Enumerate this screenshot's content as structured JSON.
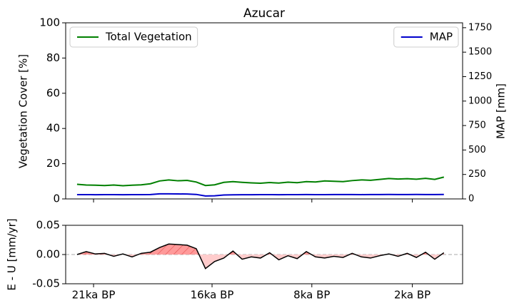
{
  "chart_data": [
    {
      "type": "line",
      "title": "Azucar",
      "y_label": "Vegetation Cover [%]",
      "y2_label": "MAP [mm]",
      "x": [
        0,
        2.5,
        5,
        7.5,
        10,
        12.5,
        15,
        17.5,
        20,
        22.5,
        25,
        27.5,
        30,
        32.5,
        35,
        37.5,
        40,
        42.5,
        45,
        47.5,
        50,
        52.5,
        55,
        57.5,
        60,
        62.5,
        65,
        67.5,
        70,
        72.5,
        75,
        77.5,
        80,
        82.5,
        85,
        87.5,
        90,
        92.5,
        95,
        97.5,
        100
      ],
      "xlim": [
        -3.1,
        105.1
      ],
      "ylim": [
        0,
        100
      ],
      "yticks": [
        0,
        20,
        40,
        60,
        80,
        100
      ],
      "y2lim": [
        0,
        1800
      ],
      "y2ticks": [
        0,
        250,
        500,
        750,
        1000,
        1250,
        1500,
        1750
      ],
      "series": [
        {
          "name": "Total Vegetation",
          "color": "#008000",
          "legend_loc": "upper left",
          "values": [
            8.3,
            7.9,
            7.8,
            7.6,
            7.9,
            7.5,
            7.8,
            8.0,
            8.6,
            10.2,
            10.8,
            10.3,
            10.5,
            9.6,
            7.6,
            8.0,
            9.4,
            9.8,
            9.4,
            9.1,
            8.9,
            9.3,
            9.0,
            9.5,
            9.2,
            9.8,
            9.6,
            10.2,
            10.0,
            9.8,
            10.4,
            10.8,
            10.6,
            11.1,
            11.6,
            11.3,
            11.5,
            11.2,
            11.7,
            11.1,
            12.4
          ]
        },
        {
          "name": "MAP",
          "color": "#0000cc",
          "axis": "y2",
          "legend_loc": "upper right",
          "values": [
            44,
            44,
            43,
            44,
            44,
            43,
            44,
            44,
            45,
            52,
            52,
            51,
            50,
            46,
            30,
            32,
            40,
            42,
            43,
            43,
            44,
            44,
            43,
            44,
            44,
            45,
            44,
            44,
            45,
            45,
            45,
            44,
            45,
            45,
            46,
            45,
            45,
            46,
            45,
            45,
            46
          ]
        }
      ]
    },
    {
      "type": "area",
      "y_label": "E - U [mm/yr]",
      "x": [
        0,
        2.5,
        5,
        7.5,
        10,
        12.5,
        15,
        17.5,
        20,
        22.5,
        25,
        27.5,
        30,
        32.5,
        35,
        37.5,
        40,
        42.5,
        45,
        47.5,
        50,
        52.5,
        55,
        57.5,
        60,
        62.5,
        65,
        67.5,
        70,
        72.5,
        75,
        77.5,
        80,
        82.5,
        85,
        87.5,
        90,
        92.5,
        95,
        97.5,
        100
      ],
      "xlim": [
        -3.1,
        105.1
      ],
      "xticks": [
        {
          "value": 4.5,
          "label": "21ka BP"
        },
        {
          "value": 36.8,
          "label": "16ka BP"
        },
        {
          "value": 64,
          "label": "8ka BP"
        },
        {
          "value": 91.4,
          "label": "2ka BP"
        }
      ],
      "ylim": [
        -0.05,
        0.05
      ],
      "yticks": [
        -0.05,
        {
          "value": 0,
          "label": "0.00"
        },
        0.05
      ],
      "zero_line_color": "#aaaaaa",
      "series": [
        {
          "color": "#000000",
          "positive_color": "#ff9a9a",
          "negative_color": "#ffcccc",
          "values": [
            0,
            0.005,
            0.001,
            0.002,
            -0.003,
            0.001,
            -0.004,
            0.002,
            0.004,
            0.012,
            0.018,
            0.017,
            0.016,
            0.01,
            -0.024,
            -0.012,
            -0.006,
            0.006,
            -0.008,
            -0.004,
            -0.006,
            0.003,
            -0.009,
            -0.002,
            -0.007,
            0.005,
            -0.004,
            -0.006,
            -0.003,
            -0.005,
            0.002,
            -0.004,
            -0.006,
            -0.002,
            0.001,
            -0.003,
            0.002,
            -0.005,
            0.004,
            -0.008,
            0.003
          ]
        }
      ]
    }
  ]
}
